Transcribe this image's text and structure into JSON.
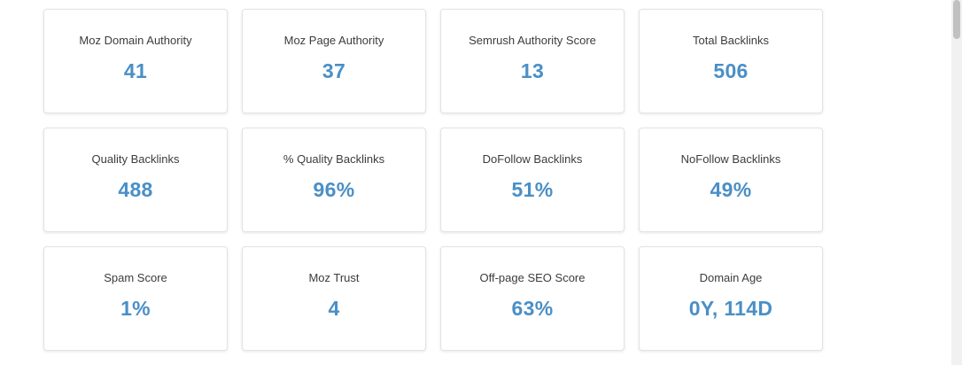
{
  "metrics": [
    {
      "label": "Moz Domain Authority",
      "value": "41"
    },
    {
      "label": "Moz Page Authority",
      "value": "37"
    },
    {
      "label": "Semrush Authority Score",
      "value": "13"
    },
    {
      "label": "Total Backlinks",
      "value": "506"
    },
    {
      "label": "Quality Backlinks",
      "value": "488"
    },
    {
      "label": "% Quality Backlinks",
      "value": "96%"
    },
    {
      "label": "DoFollow Backlinks",
      "value": "51%"
    },
    {
      "label": "NoFollow Backlinks",
      "value": "49%"
    },
    {
      "label": "Spam Score",
      "value": "1%"
    },
    {
      "label": "Moz Trust",
      "value": "4"
    },
    {
      "label": "Off-page SEO Score",
      "value": "63%"
    },
    {
      "label": "Domain Age",
      "value": "0Y, 114D"
    }
  ],
  "colors": {
    "value_text": "#4a8fc6",
    "label_text": "#3c3c3c",
    "card_border": "#e3e3e3"
  }
}
